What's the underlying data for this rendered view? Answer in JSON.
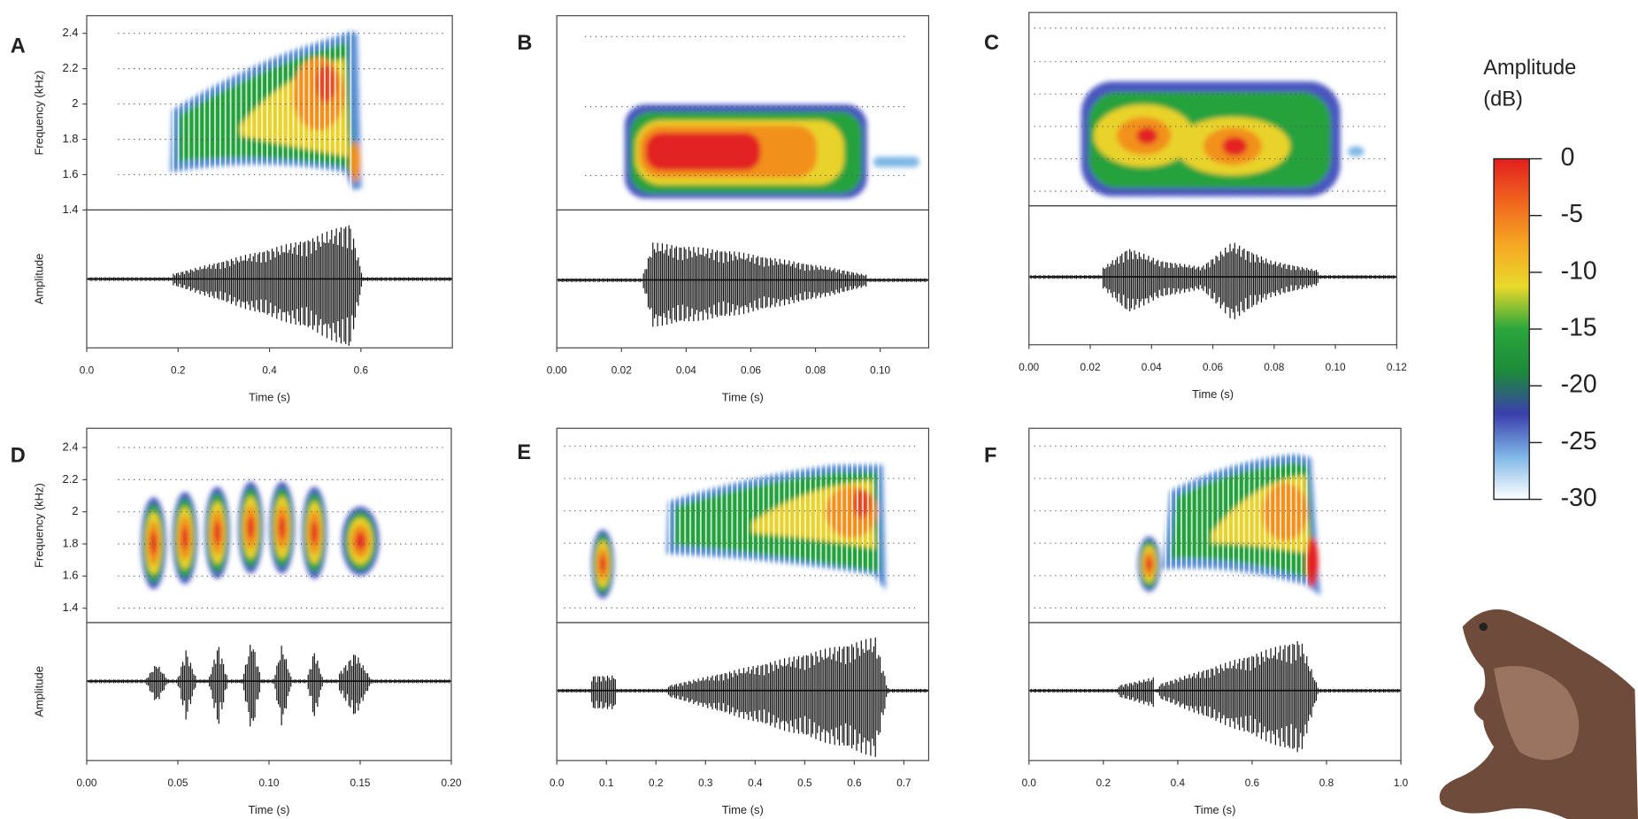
{
  "chart_data": [
    {
      "type": "spectrogram",
      "label": "A",
      "xlabel": "Time (s)",
      "ylabel": "Frequency (kHz)",
      "ylabel2": "Amplitude",
      "xlim": [
        0,
        0.8
      ],
      "xticks": [
        {
          "value": 0,
          "label": "0.0"
        },
        0.2,
        0.4,
        0.6
      ],
      "ylim": [
        1.4,
        2.5
      ],
      "yticks": [
        1.4,
        1.6,
        1.8,
        2,
        2.2,
        2.4
      ]
    },
    {
      "type": "spectrogram",
      "label": "B",
      "xlabel": "Time (s)",
      "xlim": [
        0,
        0.115
      ],
      "xticks": [
        {
          "value": 0,
          "label": "0.00"
        },
        0.02,
        0.04,
        0.06,
        0.08,
        {
          "value": 0.1,
          "label": "0.10"
        }
      ]
    },
    {
      "type": "spectrogram",
      "label": "C",
      "xlabel": "Time (s)",
      "xlim": [
        0,
        0.12
      ],
      "xticks": [
        {
          "value": 0,
          "label": "0.00"
        },
        0.02,
        0.04,
        0.06,
        0.08,
        {
          "value": 0.1,
          "label": "0.10"
        },
        0.12
      ]
    },
    {
      "type": "spectrogram",
      "label": "D",
      "xlabel": "Time (s)",
      "ylabel": "Frequency (kHz)",
      "ylabel2": "Amplitude",
      "xlim": [
        0,
        0.2
      ],
      "xticks": [
        {
          "value": 0,
          "label": "0.00"
        },
        0.05,
        {
          "value": 0.1,
          "label": "0.10"
        },
        0.15,
        {
          "value": 0.2,
          "label": "0.20"
        }
      ],
      "ylim": [
        1.31,
        2.52
      ],
      "yticks": [
        1.4,
        1.6,
        1.8,
        2,
        2.2,
        2.4
      ]
    },
    {
      "type": "spectrogram",
      "label": "E",
      "xlabel": "Time (s)",
      "xlim": [
        0,
        0.75
      ],
      "xticks": [
        {
          "value": 0,
          "label": "0.0"
        },
        0.1,
        0.2,
        0.3,
        0.4,
        0.5,
        0.6,
        0.7
      ]
    },
    {
      "type": "spectrogram",
      "label": "F",
      "xlabel": "Time (s)",
      "xlim": [
        0,
        1
      ],
      "xticks": [
        {
          "value": 0,
          "label": "0.0"
        },
        0.2,
        0.4,
        0.6,
        0.8,
        {
          "value": 1,
          "label": "1.0"
        }
      ]
    },
    {
      "type": "colorbar",
      "title": "Amplitude (dB)",
      "ylim": [
        -30,
        0
      ],
      "yticks": [
        0,
        -5,
        -10,
        -15,
        -20,
        -25,
        -30
      ],
      "colors": [
        "#e31f1f",
        "#f0641e",
        "#f6a623",
        "#e9d92b",
        "#2aa63c",
        "#1d8a3a",
        "#3b3fae",
        "#7fb7e6",
        "#ffffff"
      ]
    }
  ]
}
